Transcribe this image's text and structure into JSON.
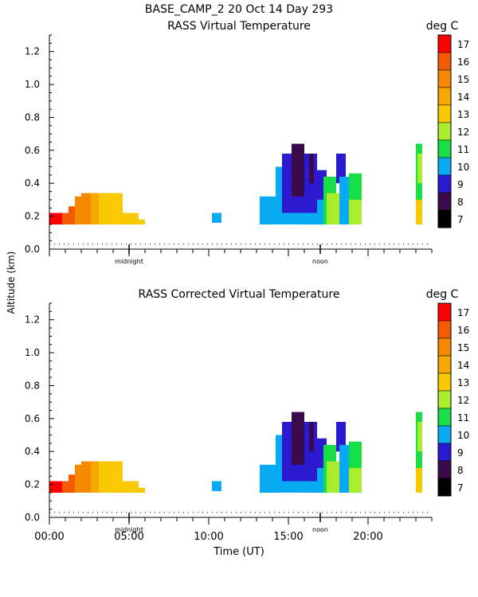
{
  "header": {
    "station_line": "BASE_CAMP_2  20 Oct 14 Day 293"
  },
  "colors": {
    "7": "#000000",
    "8": "#3a0a4a",
    "9": "#2a1ad0",
    "10": "#08aaf4",
    "11": "#18de48",
    "12": "#a8ee2c",
    "13": "#f8c800",
    "14": "#f8a600",
    "15": "#f58a00",
    "16": "#f45a00",
    "17": "#ff0000"
  },
  "colorbar": {
    "unit_label": "deg C",
    "levels": [
      "17",
      "16",
      "15",
      "14",
      "13",
      "12",
      "11",
      "10",
      "9",
      "8",
      "7"
    ]
  },
  "axes": {
    "y_label": "Altitude (km)",
    "x_label": "Time (UT)",
    "y_ticks": [
      "1.2",
      "1.0",
      "0.8",
      "0.6",
      "0.4",
      "0.2",
      "0.0"
    ],
    "x_ticks": [
      "00:00",
      "05:00",
      "10:00",
      "15:00",
      "20:00"
    ],
    "markers": {
      "midnight": "midnight",
      "noon": "noon"
    }
  },
  "chart_data": [
    {
      "type": "heatmap",
      "title": "RASS Virtual Temperature",
      "xlabel": "",
      "ylabel": "Altitude (km)",
      "xlim": [
        0,
        24
      ],
      "ylim": [
        0,
        1.3
      ],
      "unit": "deg C",
      "dotted_reference_altitude_km": 0.03,
      "cells": [
        {
          "t0": 0.0,
          "t1": 0.8,
          "z0": 0.15,
          "z1": 0.22,
          "v": 17
        },
        {
          "t0": 0.8,
          "t1": 1.2,
          "z0": 0.15,
          "z1": 0.22,
          "v": 16
        },
        {
          "t0": 1.2,
          "t1": 1.6,
          "z0": 0.15,
          "z1": 0.26,
          "v": 16
        },
        {
          "t0": 1.6,
          "t1": 2.0,
          "z0": 0.15,
          "z1": 0.32,
          "v": 15
        },
        {
          "t0": 2.0,
          "t1": 2.6,
          "z0": 0.15,
          "z1": 0.34,
          "v": 15
        },
        {
          "t0": 2.6,
          "t1": 3.1,
          "z0": 0.15,
          "z1": 0.34,
          "v": 14
        },
        {
          "t0": 3.1,
          "t1": 4.6,
          "z0": 0.15,
          "z1": 0.34,
          "v": 13
        },
        {
          "t0": 4.6,
          "t1": 5.6,
          "z0": 0.15,
          "z1": 0.22,
          "v": 13
        },
        {
          "t0": 5.6,
          "t1": 6.0,
          "z0": 0.15,
          "z1": 0.18,
          "v": 13
        },
        {
          "t0": 10.2,
          "t1": 10.8,
          "z0": 0.16,
          "z1": 0.22,
          "v": 10
        },
        {
          "t0": 13.2,
          "t1": 14.2,
          "z0": 0.15,
          "z1": 0.32,
          "v": 10
        },
        {
          "t0": 14.2,
          "t1": 15.8,
          "z0": 0.15,
          "z1": 0.5,
          "v": 10
        },
        {
          "t0": 15.8,
          "t1": 17.2,
          "z0": 0.15,
          "z1": 0.36,
          "v": 10
        },
        {
          "t0": 14.6,
          "t1": 16.8,
          "z0": 0.22,
          "z1": 0.58,
          "v": 9
        },
        {
          "t0": 15.2,
          "t1": 16.0,
          "z0": 0.32,
          "z1": 0.64,
          "v": 8
        },
        {
          "t0": 16.3,
          "t1": 16.6,
          "z0": 0.4,
          "z1": 0.58,
          "v": 8
        },
        {
          "t0": 16.8,
          "t1": 17.4,
          "z0": 0.3,
          "z1": 0.48,
          "v": 9
        },
        {
          "t0": 17.2,
          "t1": 18.0,
          "z0": 0.15,
          "z1": 0.44,
          "v": 11
        },
        {
          "t0": 17.4,
          "t1": 18.2,
          "z0": 0.15,
          "z1": 0.34,
          "v": 12
        },
        {
          "t0": 18.0,
          "t1": 18.6,
          "z0": 0.4,
          "z1": 0.58,
          "v": 9
        },
        {
          "t0": 18.2,
          "t1": 18.8,
          "z0": 0.15,
          "z1": 0.44,
          "v": 10
        },
        {
          "t0": 18.8,
          "t1": 19.6,
          "z0": 0.15,
          "z1": 0.46,
          "v": 11
        },
        {
          "t0": 18.8,
          "t1": 19.6,
          "z0": 0.15,
          "z1": 0.3,
          "v": 12
        },
        {
          "t0": 23.0,
          "t1": 23.4,
          "z0": 0.15,
          "z1": 0.3,
          "v": 13
        },
        {
          "t0": 23.0,
          "t1": 23.4,
          "z0": 0.3,
          "z1": 0.64,
          "v": 11
        },
        {
          "t0": 23.1,
          "t1": 23.4,
          "z0": 0.4,
          "z1": 0.58,
          "v": 12
        }
      ]
    },
    {
      "type": "heatmap",
      "title": "RASS Corrected Virtual Temperature",
      "xlabel": "Time (UT)",
      "ylabel": "Altitude (km)",
      "xlim": [
        0,
        24
      ],
      "ylim": [
        0,
        1.3
      ],
      "unit": "deg C",
      "dotted_reference_altitude_km": 0.03,
      "cells": [
        {
          "t0": 0.0,
          "t1": 0.8,
          "z0": 0.15,
          "z1": 0.22,
          "v": 17
        },
        {
          "t0": 0.8,
          "t1": 1.2,
          "z0": 0.15,
          "z1": 0.22,
          "v": 16
        },
        {
          "t0": 1.2,
          "t1": 1.6,
          "z0": 0.15,
          "z1": 0.26,
          "v": 16
        },
        {
          "t0": 1.6,
          "t1": 2.0,
          "z0": 0.15,
          "z1": 0.32,
          "v": 15
        },
        {
          "t0": 2.0,
          "t1": 2.6,
          "z0": 0.15,
          "z1": 0.34,
          "v": 15
        },
        {
          "t0": 2.6,
          "t1": 3.1,
          "z0": 0.15,
          "z1": 0.34,
          "v": 14
        },
        {
          "t0": 3.1,
          "t1": 4.6,
          "z0": 0.15,
          "z1": 0.34,
          "v": 13
        },
        {
          "t0": 4.6,
          "t1": 5.6,
          "z0": 0.15,
          "z1": 0.22,
          "v": 13
        },
        {
          "t0": 5.6,
          "t1": 6.0,
          "z0": 0.15,
          "z1": 0.18,
          "v": 13
        },
        {
          "t0": 10.2,
          "t1": 10.8,
          "z0": 0.16,
          "z1": 0.22,
          "v": 10
        },
        {
          "t0": 13.2,
          "t1": 14.2,
          "z0": 0.15,
          "z1": 0.32,
          "v": 10
        },
        {
          "t0": 14.2,
          "t1": 15.8,
          "z0": 0.15,
          "z1": 0.5,
          "v": 10
        },
        {
          "t0": 15.8,
          "t1": 17.2,
          "z0": 0.15,
          "z1": 0.36,
          "v": 10
        },
        {
          "t0": 14.6,
          "t1": 16.8,
          "z0": 0.22,
          "z1": 0.58,
          "v": 9
        },
        {
          "t0": 15.2,
          "t1": 16.0,
          "z0": 0.32,
          "z1": 0.64,
          "v": 8
        },
        {
          "t0": 16.3,
          "t1": 16.6,
          "z0": 0.4,
          "z1": 0.58,
          "v": 8
        },
        {
          "t0": 16.8,
          "t1": 17.4,
          "z0": 0.3,
          "z1": 0.48,
          "v": 9
        },
        {
          "t0": 17.2,
          "t1": 18.0,
          "z0": 0.15,
          "z1": 0.44,
          "v": 11
        },
        {
          "t0": 17.4,
          "t1": 18.2,
          "z0": 0.15,
          "z1": 0.34,
          "v": 12
        },
        {
          "t0": 18.0,
          "t1": 18.6,
          "z0": 0.4,
          "z1": 0.58,
          "v": 9
        },
        {
          "t0": 18.2,
          "t1": 18.8,
          "z0": 0.15,
          "z1": 0.44,
          "v": 10
        },
        {
          "t0": 18.8,
          "t1": 19.6,
          "z0": 0.15,
          "z1": 0.46,
          "v": 11
        },
        {
          "t0": 18.8,
          "t1": 19.6,
          "z0": 0.15,
          "z1": 0.3,
          "v": 12
        },
        {
          "t0": 23.0,
          "t1": 23.4,
          "z0": 0.15,
          "z1": 0.3,
          "v": 13
        },
        {
          "t0": 23.0,
          "t1": 23.4,
          "z0": 0.3,
          "z1": 0.64,
          "v": 11
        },
        {
          "t0": 23.1,
          "t1": 23.4,
          "z0": 0.4,
          "z1": 0.58,
          "v": 12
        }
      ]
    }
  ]
}
